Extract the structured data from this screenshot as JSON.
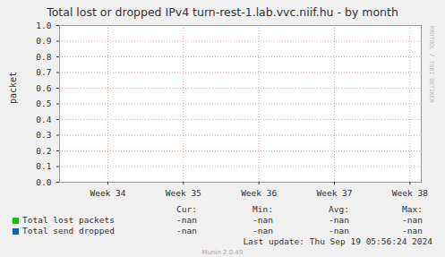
{
  "chart_data": {
    "type": "line",
    "title": "Total lost or dropped IPv4 turn-rest-1.lab.vvc.niif.hu - by month",
    "y_label": "packet",
    "x": [],
    "series": [
      {
        "name": "Total lost packets",
        "color": "#00cc00",
        "values": [],
        "stats": [
          "-nan",
          "-nan",
          "-nan",
          "-nan"
        ]
      },
      {
        "name": "Total send dropped",
        "color": "#0066b3",
        "values": [],
        "stats": [
          "-nan",
          "-nan",
          "-nan",
          "-nan"
        ]
      }
    ],
    "stat_headers": [
      "Cur:",
      "Min:",
      "Avg:",
      "Max:"
    ],
    "xlim": [
      33.36,
      38.15
    ],
    "xticks": [
      {
        "value": 34,
        "label": "Week 34"
      },
      {
        "value": 35,
        "label": "Week 35"
      },
      {
        "value": 36,
        "label": "Week 36"
      },
      {
        "value": 37,
        "label": "Week 37"
      },
      {
        "value": 38,
        "label": "Week 38"
      }
    ],
    "ylim": [
      0,
      1
    ],
    "yticks": [
      {
        "value": 0,
        "label": "0.0"
      },
      0.1,
      0.2,
      0.3,
      0.4,
      0.5,
      0.6,
      0.7,
      0.8,
      0.9,
      {
        "value": 1,
        "label": "1.0"
      }
    ],
    "grid": true,
    "legend": "bottom-left",
    "last_update": "Last update: Thu Sep 19 05:56:24 2024",
    "footer": "Munin 2.0.49",
    "watermark": "RRDTOOL / TOBI OETIKER"
  }
}
